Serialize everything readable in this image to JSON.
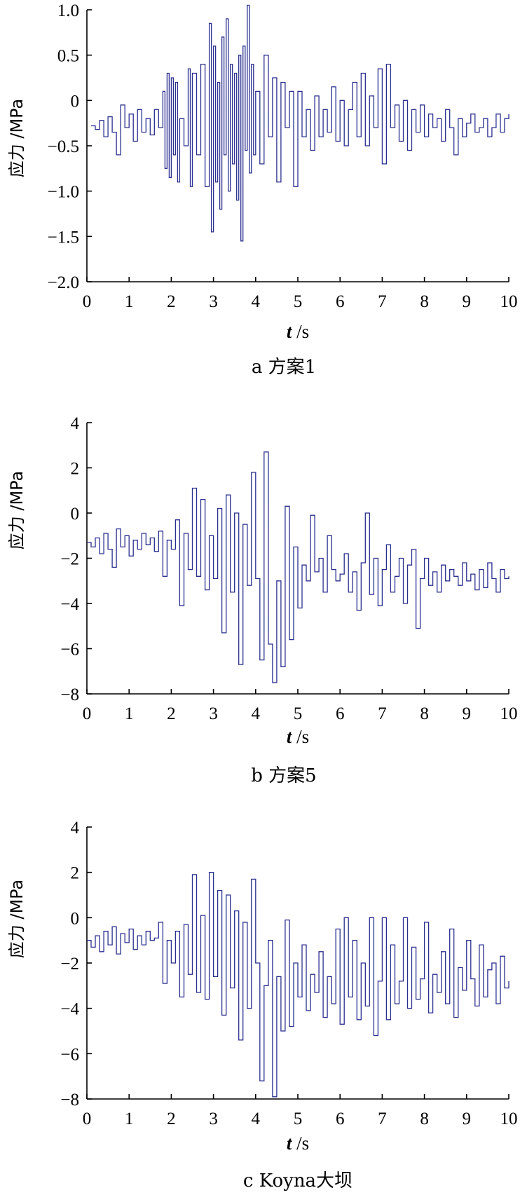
{
  "chart_data": [
    {
      "type": "line",
      "caption": "a 方案1",
      "ylabel": "应力 /MPa",
      "xlabel_var": "t",
      "xlabel_unit": " /s",
      "xlim": [
        0,
        10
      ],
      "ylim": [
        -2.0,
        1.0
      ],
      "xticks": [
        "0",
        "1",
        "2",
        "3",
        "4",
        "5",
        "6",
        "7",
        "8",
        "9",
        "10"
      ],
      "yticks": [
        "1.0",
        "0.5",
        "0",
        "−0.5",
        "−1.0",
        "−1.5",
        "−2.0"
      ],
      "ytick_values": [
        1.0,
        0.5,
        0,
        -0.5,
        -1.0,
        -1.5,
        -2.0
      ],
      "color": "#2b2f8f",
      "series": [
        {
          "x": [
            0.1,
            0.2,
            0.3,
            0.4,
            0.5,
            0.6,
            0.7,
            0.8,
            0.9,
            1.0,
            1.1,
            1.2,
            1.3,
            1.4,
            1.5,
            1.6,
            1.7,
            1.8,
            1.85,
            1.9,
            1.95,
            2.0,
            2.05,
            2.1,
            2.15,
            2.2,
            2.3,
            2.4,
            2.45,
            2.5,
            2.6,
            2.7,
            2.8,
            2.9,
            2.95,
            3.0,
            3.05,
            3.1,
            3.15,
            3.2,
            3.25,
            3.3,
            3.35,
            3.4,
            3.45,
            3.5,
            3.55,
            3.6,
            3.65,
            3.7,
            3.75,
            3.8,
            3.85,
            3.9,
            3.95,
            4.0,
            4.1,
            4.2,
            4.3,
            4.4,
            4.5,
            4.6,
            4.7,
            4.8,
            4.9,
            5.0,
            5.1,
            5.2,
            5.3,
            5.4,
            5.5,
            5.6,
            5.7,
            5.8,
            5.9,
            6.0,
            6.1,
            6.2,
            6.3,
            6.4,
            6.5,
            6.6,
            6.7,
            6.8,
            6.9,
            7.0,
            7.1,
            7.2,
            7.3,
            7.4,
            7.5,
            7.6,
            7.7,
            7.8,
            7.9,
            8.0,
            8.1,
            8.2,
            8.3,
            8.4,
            8.5,
            8.6,
            8.7,
            8.8,
            8.9,
            9.0,
            9.1,
            9.2,
            9.3,
            9.4,
            9.5,
            9.6,
            9.7,
            9.8,
            9.9,
            10.0
          ],
          "y": [
            -0.28,
            -0.32,
            -0.22,
            -0.4,
            -0.18,
            -0.35,
            -0.6,
            -0.05,
            -0.3,
            -0.15,
            -0.45,
            -0.1,
            -0.35,
            -0.2,
            -0.38,
            -0.1,
            -0.3,
            0.1,
            -0.75,
            0.3,
            -0.85,
            0.25,
            -0.6,
            0.2,
            -0.9,
            -0.2,
            -0.5,
            0.35,
            -0.95,
            0.3,
            -0.6,
            0.4,
            -0.95,
            0.85,
            -1.45,
            0.6,
            -0.9,
            0.2,
            -1.2,
            0.7,
            -0.6,
            0.9,
            -1.0,
            0.4,
            -0.7,
            0.3,
            -1.1,
            0.5,
            -1.55,
            0.6,
            -0.55,
            1.05,
            -0.8,
            0.4,
            -0.6,
            0.1,
            -0.7,
            0.5,
            -0.4,
            0.25,
            -0.9,
            0.2,
            -0.3,
            0.1,
            -0.95,
            0.1,
            -0.4,
            -0.1,
            -0.55,
            0.05,
            -0.4,
            -0.1,
            -0.35,
            0.15,
            -0.45,
            0.0,
            -0.5,
            -0.1,
            0.2,
            -0.4,
            0.3,
            -0.5,
            0.05,
            -0.3,
            0.35,
            -0.7,
            0.4,
            -0.3,
            -0.05,
            -0.45,
            0.0,
            -0.55,
            -0.1,
            -0.35,
            -0.05,
            -0.4,
            -0.15,
            -0.3,
            -0.2,
            -0.45,
            -0.1,
            -0.3,
            -0.6,
            -0.2,
            -0.4,
            -0.25,
            -0.15,
            -0.35,
            -0.3,
            -0.2,
            -0.4,
            -0.3,
            -0.15,
            -0.35,
            -0.2,
            -0.15
          ]
        }
      ]
    },
    {
      "type": "line",
      "caption": "b 方案5",
      "ylabel": "应力 /MPa",
      "xlabel_var": "t",
      "xlabel_unit": " /s",
      "xlim": [
        0,
        10
      ],
      "ylim": [
        -8,
        4
      ],
      "xticks": [
        "0",
        "1",
        "2",
        "3",
        "4",
        "5",
        "6",
        "7",
        "8",
        "9",
        "10"
      ],
      "yticks": [
        "4",
        "2",
        "0",
        "−2",
        "−4",
        "−6",
        "−8"
      ],
      "ytick_values": [
        4,
        2,
        0,
        -2,
        -4,
        -6,
        -8
      ],
      "color": "#2b2f8f",
      "series": [
        {
          "x": [
            0.0,
            0.1,
            0.2,
            0.3,
            0.4,
            0.5,
            0.6,
            0.7,
            0.8,
            0.9,
            1.0,
            1.1,
            1.2,
            1.3,
            1.4,
            1.5,
            1.6,
            1.7,
            1.8,
            1.9,
            2.0,
            2.1,
            2.2,
            2.3,
            2.4,
            2.5,
            2.6,
            2.7,
            2.8,
            2.9,
            3.0,
            3.1,
            3.2,
            3.3,
            3.4,
            3.5,
            3.6,
            3.7,
            3.8,
            3.9,
            4.0,
            4.1,
            4.2,
            4.3,
            4.4,
            4.5,
            4.6,
            4.7,
            4.8,
            4.9,
            5.0,
            5.1,
            5.2,
            5.3,
            5.4,
            5.5,
            5.6,
            5.7,
            5.8,
            5.9,
            6.0,
            6.1,
            6.2,
            6.3,
            6.4,
            6.5,
            6.6,
            6.7,
            6.8,
            6.9,
            7.0,
            7.1,
            7.2,
            7.3,
            7.4,
            7.5,
            7.6,
            7.7,
            7.8,
            7.9,
            8.0,
            8.1,
            8.2,
            8.3,
            8.4,
            8.5,
            8.6,
            8.7,
            8.8,
            8.9,
            9.0,
            9.1,
            9.2,
            9.3,
            9.4,
            9.5,
            9.6,
            9.7,
            9.8,
            9.9,
            10.0
          ],
          "y": [
            -1.3,
            -1.5,
            -1.1,
            -1.8,
            -0.9,
            -1.6,
            -2.4,
            -0.7,
            -1.5,
            -1.0,
            -1.9,
            -1.2,
            -1.6,
            -0.9,
            -1.4,
            -1.1,
            -1.7,
            -0.8,
            -2.8,
            -1.2,
            -1.6,
            -0.3,
            -4.1,
            -0.9,
            -2.5,
            1.1,
            -2.8,
            0.6,
            -3.4,
            -1.0,
            -2.9,
            0.2,
            -5.3,
            0.8,
            -3.5,
            0.0,
            -6.7,
            -0.5,
            -3.2,
            1.8,
            -2.9,
            -6.5,
            2.7,
            -5.8,
            -7.5,
            -3.0,
            -6.8,
            0.3,
            -5.6,
            -1.5,
            -4.2,
            -2.3,
            -3.0,
            -0.1,
            -2.6,
            -2.0,
            -3.5,
            -1.0,
            -2.5,
            -3.0,
            -2.7,
            -1.8,
            -3.5,
            -2.6,
            -4.3,
            -2.2,
            0.0,
            -3.6,
            -2.0,
            -4.1,
            -2.5,
            -1.4,
            -3.5,
            -2.8,
            -2.0,
            -4.0,
            -2.3,
            -1.6,
            -5.1,
            -2.9,
            -2.0,
            -3.2,
            -2.6,
            -3.5,
            -2.3,
            -3.0,
            -2.5,
            -2.8,
            -3.2,
            -2.2,
            -3.0,
            -2.7,
            -3.4,
            -2.5,
            -3.3,
            -2.2,
            -2.9,
            -3.5,
            -2.5,
            -2.9,
            -2.8
          ]
        }
      ]
    },
    {
      "type": "line",
      "caption": "c Koyna大坝",
      "ylabel": "应力 /MPa",
      "xlabel_var": "t",
      "xlabel_unit": " /s",
      "xlim": [
        0,
        10
      ],
      "ylim": [
        -8,
        4
      ],
      "xticks": [
        "0",
        "1",
        "2",
        "3",
        "4",
        "5",
        "6",
        "7",
        "8",
        "9",
        "10"
      ],
      "yticks": [
        "4",
        "2",
        "0",
        "−2",
        "−4",
        "−6",
        "−8"
      ],
      "ytick_values": [
        4,
        2,
        0,
        -2,
        -4,
        -6,
        -8
      ],
      "color": "#2b2f8f",
      "series": [
        {
          "x": [
            0.0,
            0.1,
            0.2,
            0.3,
            0.4,
            0.5,
            0.6,
            0.7,
            0.8,
            0.9,
            1.0,
            1.1,
            1.2,
            1.3,
            1.4,
            1.5,
            1.6,
            1.7,
            1.8,
            1.9,
            2.0,
            2.1,
            2.2,
            2.3,
            2.4,
            2.5,
            2.6,
            2.7,
            2.8,
            2.9,
            3.0,
            3.1,
            3.2,
            3.3,
            3.4,
            3.5,
            3.6,
            3.7,
            3.8,
            3.9,
            4.0,
            4.1,
            4.2,
            4.3,
            4.4,
            4.5,
            4.6,
            4.7,
            4.8,
            4.9,
            5.0,
            5.1,
            5.2,
            5.3,
            5.4,
            5.5,
            5.6,
            5.7,
            5.8,
            5.9,
            6.0,
            6.1,
            6.2,
            6.3,
            6.4,
            6.5,
            6.6,
            6.7,
            6.8,
            6.9,
            7.0,
            7.1,
            7.2,
            7.3,
            7.4,
            7.5,
            7.6,
            7.7,
            7.8,
            7.9,
            8.0,
            8.1,
            8.2,
            8.3,
            8.4,
            8.5,
            8.6,
            8.7,
            8.8,
            8.9,
            9.0,
            9.1,
            9.2,
            9.3,
            9.4,
            9.5,
            9.6,
            9.7,
            9.8,
            9.9,
            10.0
          ],
          "y": [
            -1.0,
            -1.3,
            -0.8,
            -1.5,
            -0.6,
            -1.2,
            -0.4,
            -1.6,
            -0.7,
            -1.1,
            -0.5,
            -1.4,
            -0.8,
            -1.2,
            -0.6,
            -1.0,
            -0.9,
            -0.2,
            -2.9,
            -1.0,
            -2.0,
            -0.6,
            -3.5,
            -0.3,
            -2.5,
            1.9,
            -3.3,
            0.1,
            -3.6,
            2.0,
            -2.6,
            1.2,
            -4.3,
            1.0,
            -3.1,
            0.3,
            -5.4,
            -0.2,
            -4.0,
            1.7,
            -2.0,
            -7.2,
            -3.0,
            -1.0,
            -7.9,
            -2.6,
            -5.0,
            -0.1,
            -4.8,
            -2.0,
            -3.5,
            -1.2,
            -4.1,
            -2.5,
            -3.3,
            -1.5,
            -4.4,
            -2.6,
            -3.8,
            -0.5,
            -4.7,
            0.0,
            -3.5,
            -1.0,
            -4.5,
            -2.0,
            -3.9,
            0.0,
            -5.2,
            -2.8,
            0.0,
            -4.5,
            -1.2,
            -3.8,
            -2.8,
            0.0,
            -4.0,
            -1.3,
            -3.6,
            -2.7,
            -0.2,
            -4.2,
            -2.5,
            -3.3,
            -1.5,
            -3.8,
            -0.5,
            -4.4,
            -2.2,
            -3.2,
            -1.0,
            -2.7,
            -3.9,
            -1.2,
            -3.5,
            -2.3,
            -2.0,
            -3.8,
            -1.7,
            -3.1,
            -2.8
          ]
        }
      ]
    }
  ]
}
